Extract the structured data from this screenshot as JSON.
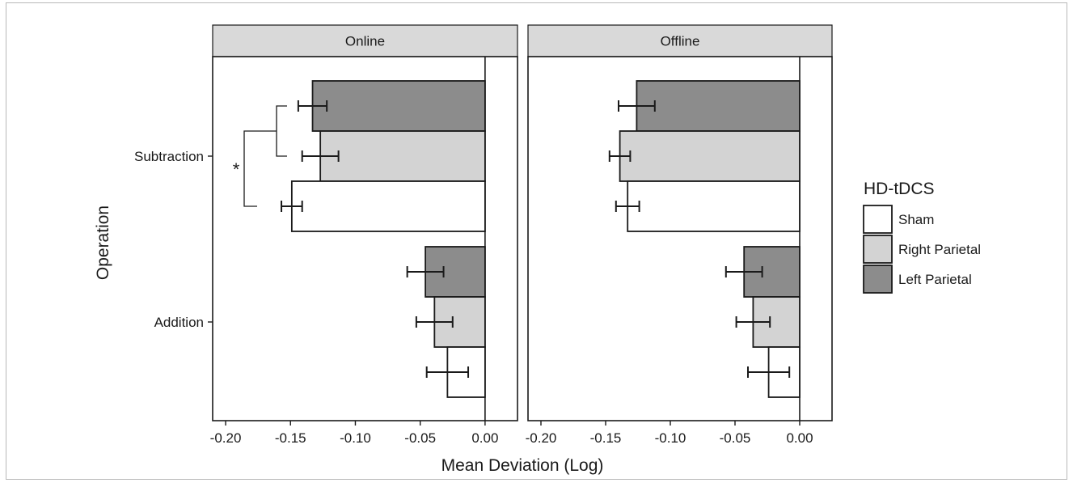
{
  "chart_data": {
    "type": "bar",
    "orientation": "horizontal",
    "facets": [
      "Online",
      "Offline"
    ],
    "categories": [
      "Subtraction",
      "Addition"
    ],
    "xlabel": "Mean Deviation (Log)",
    "ylabel": "Operation",
    "xlim": [
      -0.21,
      0.025
    ],
    "xticks": [
      -0.2,
      -0.15,
      -0.1,
      -0.05,
      0.0
    ],
    "xtick_labels": [
      "-0.20",
      "-0.15",
      "-0.10",
      "-0.05",
      "0.00"
    ],
    "grid": false,
    "legend": {
      "title": "HD-tDCS",
      "placement": "right",
      "entries": [
        "Sham",
        "Right Parietal",
        "Left Parietal"
      ]
    },
    "colors": {
      "Sham": "#ffffff",
      "Right Parietal": "#d3d3d3",
      "Left Parietal": "#8c8c8c",
      "strip": "#d9d9d9",
      "stroke": "#1a1a1a"
    },
    "series": [
      {
        "name": "Sham",
        "values": {
          "Online": {
            "Subtraction": -0.149,
            "Addition": -0.029
          },
          "Offline": {
            "Subtraction": -0.133,
            "Addition": -0.024
          }
        },
        "errors": {
          "Online": {
            "Subtraction": 0.008,
            "Addition": 0.016
          },
          "Offline": {
            "Subtraction": 0.009,
            "Addition": 0.016
          }
        }
      },
      {
        "name": "Right Parietal",
        "values": {
          "Online": {
            "Subtraction": -0.127,
            "Addition": -0.039
          },
          "Offline": {
            "Subtraction": -0.139,
            "Addition": -0.036
          }
        },
        "errors": {
          "Online": {
            "Subtraction": 0.014,
            "Addition": 0.014
          },
          "Offline": {
            "Subtraction": 0.008,
            "Addition": 0.013
          }
        }
      },
      {
        "name": "Left Parietal",
        "values": {
          "Online": {
            "Subtraction": -0.133,
            "Addition": -0.046
          },
          "Offline": {
            "Subtraction": -0.126,
            "Addition": -0.043
          }
        },
        "errors": {
          "Online": {
            "Subtraction": 0.011,
            "Addition": 0.014
          },
          "Offline": {
            "Subtraction": 0.014,
            "Addition": 0.014
          }
        }
      }
    ],
    "annotations": [
      {
        "text": "*",
        "facet": "Online",
        "category": "Subtraction",
        "description": "significance bracket: Sham vs. parietal stimulation"
      }
    ]
  }
}
